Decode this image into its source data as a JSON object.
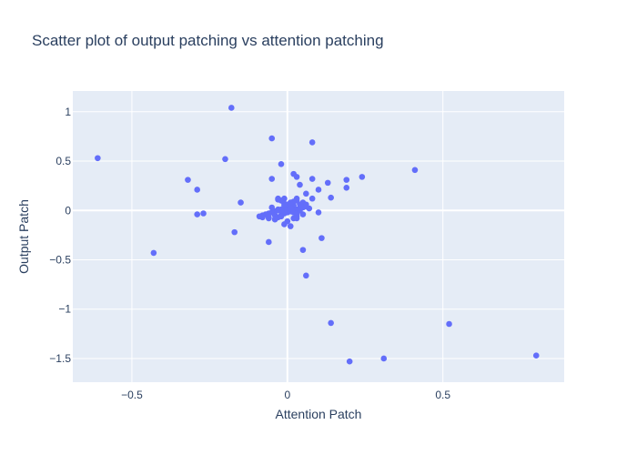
{
  "chart_data": {
    "type": "scatter",
    "title": "Scatter plot of output patching vs attention patching",
    "xlabel": "Attention Patch",
    "ylabel": "Output Patch",
    "xlim": [
      -0.69,
      0.89
    ],
    "ylim": [
      -1.74,
      1.21
    ],
    "xticks": [
      {
        "v": -0.5,
        "label": "−0.5"
      },
      {
        "v": 0,
        "label": "0"
      },
      {
        "v": 0.5,
        "label": "0.5"
      }
    ],
    "yticks": [
      {
        "v": -1.5,
        "label": "−1.5"
      },
      {
        "v": -1,
        "label": "−1"
      },
      {
        "v": -0.5,
        "label": "−0.5"
      },
      {
        "v": 0,
        "label": "0"
      },
      {
        "v": 0.5,
        "label": "0.5"
      },
      {
        "v": 1,
        "label": "1"
      }
    ],
    "grid": true,
    "colors": {
      "background": "#e5ecf6",
      "grid": "#ffffff",
      "marker": "#636efa"
    },
    "x": [
      -0.18,
      -0.05,
      0.08,
      -0.02,
      -0.2,
      -0.61,
      0.41,
      0.02,
      0.03,
      0.08,
      0.04,
      -0.05,
      0.13,
      0.19,
      0.24,
      -0.32,
      -0.29,
      -0.29,
      -0.27,
      -0.15,
      0.1,
      0.08,
      0.03,
      0.06,
      -0.01,
      0.14,
      0.19,
      0.1,
      -0.17,
      -0.06,
      0.11,
      0.05,
      -0.43,
      0.06,
      0.14,
      0.52,
      0.8,
      0.31,
      0.2,
      0.03,
      0.05,
      0.06,
      0.02,
      0.01,
      0.0,
      -0.01,
      -0.02,
      -0.03,
      -0.04,
      -0.05,
      -0.06,
      -0.07,
      -0.08,
      -0.09,
      -0.08,
      -0.06,
      -0.04,
      -0.03,
      -0.02,
      -0.01,
      0.0,
      0.01,
      0.02,
      0.03,
      0.04,
      0.05,
      0.06,
      0.07,
      0.0,
      -0.01,
      0.01,
      0.02,
      -0.02,
      -0.03,
      0.03,
      0.02,
      -0.04,
      -0.05,
      0.04,
      0.0,
      -0.01,
      0.01,
      0.02,
      0.03,
      -0.02,
      -0.03,
      0.05,
      -0.02,
      -0.01,
      0.0,
      0.01,
      0.03,
      0.04,
      -0.06,
      -0.04,
      -0.03
    ],
    "y": [
      1.04,
      0.73,
      0.69,
      0.47,
      0.52,
      0.53,
      0.41,
      0.37,
      0.34,
      0.32,
      0.26,
      0.32,
      0.28,
      0.31,
      0.34,
      0.31,
      0.21,
      -0.04,
      -0.03,
      0.08,
      0.21,
      0.12,
      0.12,
      0.17,
      0.12,
      0.13,
      0.23,
      -0.02,
      -0.22,
      -0.32,
      -0.28,
      -0.4,
      -0.43,
      -0.66,
      -1.14,
      -1.15,
      -1.47,
      -1.5,
      -1.53,
      0.1,
      0.08,
      0.06,
      0.05,
      0.04,
      0.03,
      0.02,
      0.01,
      0.0,
      -0.01,
      -0.02,
      -0.03,
      -0.04,
      -0.05,
      -0.06,
      -0.07,
      -0.08,
      -0.09,
      -0.07,
      -0.05,
      -0.03,
      -0.02,
      -0.01,
      0.0,
      0.01,
      0.02,
      0.03,
      0.04,
      0.02,
      0.06,
      0.07,
      0.08,
      0.09,
      0.1,
      0.11,
      -0.06,
      -0.08,
      -0.05,
      0.03,
      0.06,
      -0.11,
      -0.14,
      -0.16,
      -0.02,
      -0.03,
      0.0,
      0.01,
      -0.04,
      -0.06,
      0.05,
      0.0,
      0.02,
      -0.08,
      0.0,
      -0.07,
      -0.09,
      0.12
    ]
  }
}
